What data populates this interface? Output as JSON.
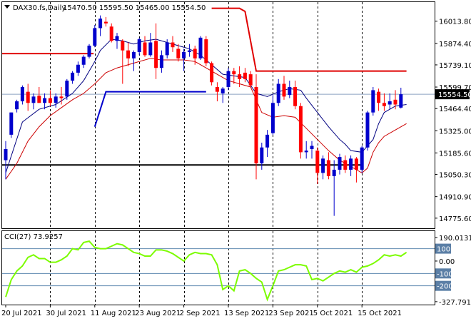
{
  "header": {
    "symbol": "DAX30.fs,Daily",
    "ohlc": "15470.50 15595.50 15465.00 15554.50"
  },
  "cci_header": {
    "label": "CCI(27) 73.9257"
  },
  "colors": {
    "bull": "#0000cc",
    "bear": "#ff0000",
    "ma_fast": "#000080",
    "ma_slow": "#cc0000",
    "resistance": "#e00000",
    "support": "#000000",
    "trend": "#0000cc",
    "cci": "#7cfc00",
    "cci_levels": "#5f8ab0"
  },
  "chart_data": [
    {
      "type": "candlestick",
      "title": "DAX30.fs,Daily",
      "ylim": [
        14730,
        16120
      ],
      "y_ticks": [
        "16013.80",
        "15874.40",
        "15739.10",
        "15599.70",
        "15464.40",
        "15325.00",
        "15185.60",
        "15050.30",
        "14910.90",
        "14775.60"
      ],
      "y_tick_values": [
        16013.8,
        15874.4,
        15739.1,
        15599.7,
        15464.4,
        15325.0,
        15185.6,
        15050.3,
        14910.9,
        14775.6
      ],
      "price_label": "15554.50",
      "price_value": 15554.5,
      "x_labels": [
        "20 Jul 2021",
        "30 Jul 2021",
        "11 Aug 2021",
        "23 Aug 2021",
        "2 Sep 2021",
        "13 Sep 2021",
        "23 Sep 2021",
        "5 Oct 2021",
        "15 Oct 2021"
      ],
      "x_label_index": [
        0,
        8,
        16,
        24,
        32,
        40,
        48,
        56,
        64
      ],
      "vgrid_index": [
        8,
        16,
        24,
        32,
        40,
        48,
        56,
        64
      ],
      "candles": [
        {
          "o": 15140,
          "h": 15260,
          "l": 15020,
          "c": 15210
        },
        {
          "o": 15300,
          "h": 15440,
          "l": 15280,
          "c": 15440
        },
        {
          "o": 15460,
          "h": 15520,
          "l": 15440,
          "c": 15510
        },
        {
          "o": 15510,
          "h": 15610,
          "l": 15490,
          "c": 15600
        },
        {
          "o": 15570,
          "h": 15620,
          "l": 15450,
          "c": 15500
        },
        {
          "o": 15500,
          "h": 15560,
          "l": 15460,
          "c": 15540
        },
        {
          "o": 15545,
          "h": 15600,
          "l": 15500,
          "c": 15500
        },
        {
          "o": 15500,
          "h": 15560,
          "l": 15460,
          "c": 15530
        },
        {
          "o": 15530,
          "h": 15580,
          "l": 15480,
          "c": 15500
        },
        {
          "o": 15500,
          "h": 15560,
          "l": 15470,
          "c": 15540
        },
        {
          "o": 15540,
          "h": 15600,
          "l": 15490,
          "c": 15530
        },
        {
          "o": 15540,
          "h": 15650,
          "l": 15520,
          "c": 15640
        },
        {
          "o": 15640,
          "h": 15700,
          "l": 15620,
          "c": 15690
        },
        {
          "o": 15690,
          "h": 15760,
          "l": 15670,
          "c": 15740
        },
        {
          "o": 15740,
          "h": 15800,
          "l": 15720,
          "c": 15790
        },
        {
          "o": 15790,
          "h": 15870,
          "l": 15780,
          "c": 15860
        },
        {
          "o": 15860,
          "h": 15990,
          "l": 15850,
          "c": 15970
        },
        {
          "o": 15970,
          "h": 16050,
          "l": 15920,
          "c": 16030
        },
        {
          "o": 16010,
          "h": 16040,
          "l": 15980,
          "c": 16000
        },
        {
          "o": 15980,
          "h": 16000,
          "l": 15880,
          "c": 15890
        },
        {
          "o": 15890,
          "h": 15940,
          "l": 15840,
          "c": 15920
        },
        {
          "o": 15890,
          "h": 15900,
          "l": 15620,
          "c": 15830
        },
        {
          "o": 15830,
          "h": 15880,
          "l": 15730,
          "c": 15780
        },
        {
          "o": 15780,
          "h": 15830,
          "l": 15700,
          "c": 15820
        },
        {
          "o": 15820,
          "h": 15910,
          "l": 15800,
          "c": 15900
        },
        {
          "o": 15880,
          "h": 15920,
          "l": 15790,
          "c": 15800
        },
        {
          "o": 15800,
          "h": 15940,
          "l": 15790,
          "c": 15880
        },
        {
          "o": 15890,
          "h": 16000,
          "l": 15650,
          "c": 15720
        },
        {
          "o": 15720,
          "h": 15830,
          "l": 15690,
          "c": 15800
        },
        {
          "o": 15800,
          "h": 15900,
          "l": 15780,
          "c": 15880
        },
        {
          "o": 15880,
          "h": 15920,
          "l": 15820,
          "c": 15850
        },
        {
          "o": 15840,
          "h": 15870,
          "l": 15760,
          "c": 15780
        },
        {
          "o": 15780,
          "h": 15840,
          "l": 15700,
          "c": 15820
        },
        {
          "o": 15820,
          "h": 15870,
          "l": 15790,
          "c": 15830
        },
        {
          "o": 15840,
          "h": 15860,
          "l": 15740,
          "c": 15780
        },
        {
          "o": 15780,
          "h": 15920,
          "l": 15770,
          "c": 15910
        },
        {
          "o": 15900,
          "h": 15920,
          "l": 15730,
          "c": 15750
        },
        {
          "o": 15750,
          "h": 15760,
          "l": 15610,
          "c": 15630
        },
        {
          "o": 15600,
          "h": 15630,
          "l": 15510,
          "c": 15570
        },
        {
          "o": 15560,
          "h": 15600,
          "l": 15500,
          "c": 15590
        },
        {
          "o": 15600,
          "h": 15720,
          "l": 15580,
          "c": 15700
        },
        {
          "o": 15700,
          "h": 15720,
          "l": 15620,
          "c": 15680
        },
        {
          "o": 15680,
          "h": 15730,
          "l": 15600,
          "c": 15650
        },
        {
          "o": 15690,
          "h": 15720,
          "l": 15630,
          "c": 15650
        },
        {
          "o": 15680,
          "h": 15700,
          "l": 15600,
          "c": 15610
        },
        {
          "o": 15600,
          "h": 15680,
          "l": 15020,
          "c": 15120
        },
        {
          "o": 15120,
          "h": 15250,
          "l": 15080,
          "c": 15220
        },
        {
          "o": 15220,
          "h": 15330,
          "l": 15160,
          "c": 15300
        },
        {
          "o": 15310,
          "h": 15550,
          "l": 15300,
          "c": 15500
        },
        {
          "o": 15500,
          "h": 15650,
          "l": 15480,
          "c": 15620
        },
        {
          "o": 15620,
          "h": 15670,
          "l": 15520,
          "c": 15540
        },
        {
          "o": 15550,
          "h": 15640,
          "l": 15530,
          "c": 15600
        },
        {
          "o": 15600,
          "h": 15640,
          "l": 15460,
          "c": 15480
        },
        {
          "o": 15480,
          "h": 15500,
          "l": 15150,
          "c": 15190
        },
        {
          "o": 15190,
          "h": 15260,
          "l": 15150,
          "c": 15200
        },
        {
          "o": 15210,
          "h": 15260,
          "l": 15150,
          "c": 15230
        },
        {
          "o": 15200,
          "h": 15220,
          "l": 14990,
          "c": 15060
        },
        {
          "o": 15060,
          "h": 15170,
          "l": 15020,
          "c": 15150
        },
        {
          "o": 15140,
          "h": 15190,
          "l": 15020,
          "c": 15040
        },
        {
          "o": 15040,
          "h": 15140,
          "l": 14790,
          "c": 15080
        },
        {
          "o": 15080,
          "h": 15180,
          "l": 15050,
          "c": 15160
        },
        {
          "o": 15140,
          "h": 15170,
          "l": 15060,
          "c": 15080
        },
        {
          "o": 15080,
          "h": 15170,
          "l": 15040,
          "c": 15150
        },
        {
          "o": 15150,
          "h": 15160,
          "l": 15000,
          "c": 15080
        },
        {
          "o": 15080,
          "h": 15230,
          "l": 15060,
          "c": 15220
        },
        {
          "o": 15220,
          "h": 15450,
          "l": 15200,
          "c": 15440
        },
        {
          "o": 15440,
          "h": 15600,
          "l": 15420,
          "c": 15580
        },
        {
          "o": 15570,
          "h": 15590,
          "l": 15450,
          "c": 15500
        },
        {
          "o": 15500,
          "h": 15560,
          "l": 15450,
          "c": 15480
        },
        {
          "o": 15490,
          "h": 15560,
          "l": 15460,
          "c": 15510
        },
        {
          "o": 15520,
          "h": 15580,
          "l": 15460,
          "c": 15490
        },
        {
          "o": 15470.5,
          "h": 15595.5,
          "l": 15465,
          "c": 15554.5
        }
      ],
      "ma_fast": [
        [
          0,
          15060
        ],
        [
          3,
          15380
        ],
        [
          6,
          15460
        ],
        [
          9,
          15490
        ],
        [
          12,
          15560
        ],
        [
          14,
          15640
        ],
        [
          15,
          15700
        ],
        [
          16,
          15760
        ],
        [
          17,
          15830
        ],
        [
          19,
          15900
        ],
        [
          21,
          15890
        ],
        [
          23,
          15870
        ],
        [
          25,
          15890
        ],
        [
          27,
          15900
        ],
        [
          29,
          15880
        ],
        [
          31,
          15860
        ],
        [
          33,
          15840
        ],
        [
          35,
          15800
        ],
        [
          37,
          15740
        ],
        [
          39,
          15680
        ],
        [
          41,
          15670
        ],
        [
          43,
          15660
        ],
        [
          45,
          15560
        ],
        [
          47,
          15540
        ],
        [
          49,
          15570
        ],
        [
          51,
          15590
        ],
        [
          53,
          15580
        ],
        [
          54,
          15530
        ],
        [
          56,
          15440
        ],
        [
          58,
          15350
        ],
        [
          60,
          15270
        ],
        [
          61,
          15240
        ],
        [
          62,
          15200
        ],
        [
          64,
          15190
        ],
        [
          66,
          15270
        ],
        [
          67,
          15370
        ],
        [
          68,
          15440
        ],
        [
          70,
          15480
        ],
        [
          72,
          15490
        ]
      ],
      "ma_slow": [
        [
          0,
          15020
        ],
        [
          2,
          15120
        ],
        [
          4,
          15260
        ],
        [
          6,
          15350
        ],
        [
          8,
          15420
        ],
        [
          10,
          15470
        ],
        [
          12,
          15520
        ],
        [
          14,
          15560
        ],
        [
          16,
          15620
        ],
        [
          18,
          15690
        ],
        [
          20,
          15720
        ],
        [
          22,
          15740
        ],
        [
          24,
          15760
        ],
        [
          26,
          15780
        ],
        [
          28,
          15770
        ],
        [
          30,
          15770
        ],
        [
          32,
          15770
        ],
        [
          34,
          15760
        ],
        [
          36,
          15720
        ],
        [
          38,
          15680
        ],
        [
          40,
          15640
        ],
        [
          42,
          15620
        ],
        [
          44,
          15600
        ],
        [
          46,
          15440
        ],
        [
          48,
          15410
        ],
        [
          50,
          15420
        ],
        [
          52,
          15410
        ],
        [
          54,
          15340
        ],
        [
          56,
          15270
        ],
        [
          58,
          15200
        ],
        [
          60,
          15140
        ],
        [
          62,
          15100
        ],
        [
          64,
          15060
        ],
        [
          65,
          15090
        ],
        [
          66,
          15190
        ],
        [
          67,
          15250
        ],
        [
          68,
          15290
        ],
        [
          70,
          15330
        ],
        [
          72,
          15370
        ]
      ],
      "resistance_upper": {
        "x0": 0,
        "x1": 14,
        "y": 15810
      },
      "resistance_drop": [
        [
          37,
          16095
        ],
        [
          42,
          16095
        ],
        [
          43,
          16075
        ],
        [
          45,
          15700
        ],
        [
          72,
          15700
        ]
      ],
      "support": {
        "x0": 0,
        "x1": 63,
        "y": 15110
      },
      "trend_line": [
        [
          16,
          15350
        ],
        [
          18,
          15570
        ],
        [
          36,
          15570
        ]
      ]
    },
    {
      "type": "line",
      "title": "CCI(27) 73.9257",
      "ylim": [
        -340,
        230
      ],
      "y_ticks": [
        "190.0131",
        "100",
        "0.00",
        "-100",
        "-200",
        "-327.7911"
      ],
      "y_tick_values": [
        190.0131,
        100,
        0,
        -100,
        -200,
        -327.7911
      ],
      "levels": [
        100,
        -100,
        -200
      ],
      "values": [
        -290,
        -150,
        -80,
        -40,
        30,
        50,
        20,
        20,
        -10,
        -10,
        10,
        40,
        100,
        90,
        150,
        160,
        110,
        100,
        100,
        120,
        140,
        130,
        100,
        70,
        60,
        40,
        40,
        90,
        90,
        80,
        60,
        30,
        0,
        50,
        70,
        60,
        60,
        50,
        -30,
        -230,
        -200,
        -240,
        -80,
        -70,
        -100,
        -140,
        -170,
        -310,
        -200,
        -80,
        -70,
        -50,
        -30,
        -30,
        -40,
        -150,
        -140,
        -160,
        -130,
        -100,
        -80,
        -90,
        -70,
        -90,
        -50,
        -40,
        -20,
        10,
        50,
        40,
        50,
        40,
        70
      ]
    }
  ]
}
